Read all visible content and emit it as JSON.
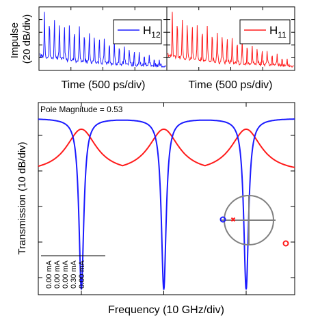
{
  "chart_data": [
    {
      "type": "line",
      "panel": "impulse-h12",
      "ylabel": "Impulse\n(20 dB/div)",
      "xlabel": "Time (500 ps/div)",
      "legend": {
        "placement": "top-right",
        "entries": [
          {
            "name": "H",
            "sub": "12",
            "color": "#1a1aff"
          }
        ]
      },
      "series": [
        {
          "name": "H12",
          "color": "#1a1aff",
          "decay_start": 0.92,
          "decay_end": 0.18,
          "peak_count": 24
        }
      ],
      "grid": false
    },
    {
      "type": "line",
      "panel": "impulse-h11",
      "xlabel": "Time (500 ps/div)",
      "legend": {
        "placement": "top-right",
        "entries": [
          {
            "name": "H",
            "sub": "11",
            "color": "#ff1a1a"
          }
        ]
      },
      "series": [
        {
          "name": "H11",
          "color": "#ff1a1a",
          "decay_start": 0.92,
          "decay_end": 0.2,
          "peak_count": 24
        }
      ],
      "grid": false
    },
    {
      "type": "line",
      "panel": "transmission",
      "annotation": "Pole Magnitude = 0.53",
      "ylabel": "Transmission (10 dB/div)",
      "xlabel": "Frequency (10 GHz/div)",
      "notch_centers_div": [
        0.75,
        1.75,
        2.75
      ],
      "series": [
        {
          "name": "H12",
          "color": "#1a1aff"
        },
        {
          "name": "H11",
          "color": "#ff1a1a"
        }
      ],
      "current_labels": [
        "0.00 mA",
        "0.00 mA",
        "0.00 mA",
        "0.30 mA",
        "0.00 mA"
      ],
      "pole_zero_inset": {
        "unit_circle": true,
        "pole_magnitude": 0.53,
        "zero_color": "#1a1aff",
        "pole_color": "#ff1a1a"
      },
      "grid": false
    }
  ],
  "colors": {
    "h12": "#1a1aff",
    "h11": "#ff1a1a",
    "axis": "#000000",
    "inset": "#808080"
  }
}
